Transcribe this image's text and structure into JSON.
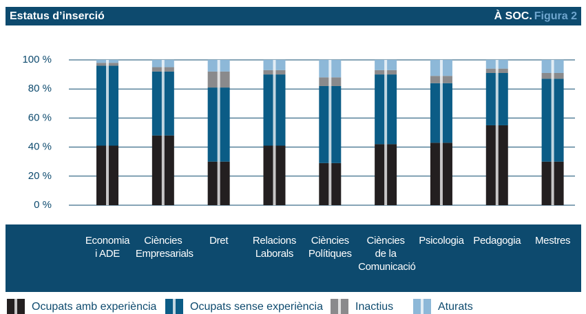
{
  "header": {
    "right": "À SOC.",
    "figure": "Figura 2"
  },
  "chart_data": {
    "type": "stacked_bar",
    "title": "Estatus d’inserció",
    "categories": [
      "Economia\ni ADE",
      "Ciències\nEmpresarials",
      "Dret",
      "Relacions\nLaborals",
      "Ciències\nPolítiques",
      "Ciències\nde la\nComunicació",
      "Psicologia",
      "Pedagogia",
      "Mestres"
    ],
    "series": [
      {
        "name": "Ocupats amb experiència",
        "color": "#231f20",
        "values": [
          41,
          48,
          30,
          41,
          29,
          42,
          43,
          55,
          30
        ]
      },
      {
        "name": "Ocupats sense experiència",
        "color": "#0b5c86",
        "values": [
          55,
          44,
          51,
          49,
          53,
          48,
          41,
          36,
          57
        ]
      },
      {
        "name": "Inactius",
        "color": "#8a8a8c",
        "values": [
          2,
          3,
          11,
          3,
          6,
          3,
          5,
          3,
          4
        ]
      },
      {
        "name": "Aturats",
        "color": "#8db8d8",
        "values": [
          2,
          5,
          8,
          7,
          12,
          7,
          11,
          6,
          9
        ]
      }
    ],
    "ylim": [
      0,
      100
    ],
    "yticks": [
      {
        "value": 0,
        "label": "0 %"
      },
      {
        "value": 20,
        "label": "20 %"
      },
      {
        "value": 40,
        "label": "40 %"
      },
      {
        "value": 60,
        "label": "60 %"
      },
      {
        "value": 80,
        "label": "80 %"
      },
      {
        "value": 100,
        "label": "100 %"
      }
    ],
    "grid": true
  }
}
